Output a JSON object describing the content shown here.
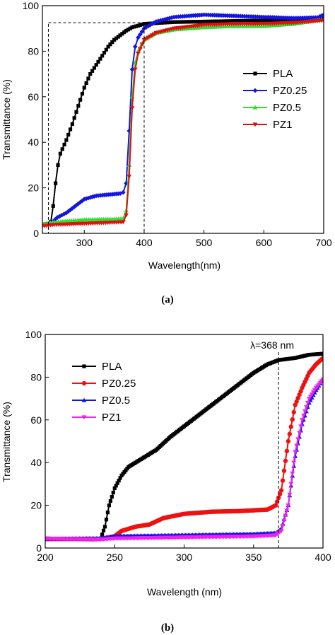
{
  "chart_data": [
    {
      "type": "line",
      "panel_label": "(a)",
      "xlabel": "Wavelength(nm)",
      "ylabel": "Transmittance (%)",
      "xlim": [
        230,
        700
      ],
      "ylim": [
        0,
        100
      ],
      "xticks": [
        300,
        400,
        500,
        600,
        700
      ],
      "yticks": [
        0,
        20,
        40,
        60,
        80,
        100
      ],
      "legend_position": "center-right",
      "grid": false,
      "highlight_box": {
        "x": [
          240,
          400
        ],
        "y": [
          0,
          92.5
        ]
      },
      "series": [
        {
          "name": "PLA",
          "color": "#000000",
          "marker": "square",
          "points": [
            [
              230,
              3.8
            ],
            [
              240,
              4.2
            ],
            [
              244,
              5
            ],
            [
              248,
              12
            ],
            [
              252,
              22
            ],
            [
              256,
              30
            ],
            [
              260,
              35
            ],
            [
              270,
              41
            ],
            [
              280,
              48
            ],
            [
              290,
              56
            ],
            [
              300,
              64
            ],
            [
              310,
              70
            ],
            [
              320,
              74
            ],
            [
              330,
              78
            ],
            [
              340,
              82
            ],
            [
              350,
              85
            ],
            [
              360,
              87
            ],
            [
              370,
              89
            ],
            [
              380,
              90.5
            ],
            [
              390,
              91.2
            ],
            [
              400,
              92
            ],
            [
              450,
              92.8
            ],
            [
              500,
              93
            ],
            [
              600,
              93.5
            ],
            [
              700,
              94.5
            ]
          ]
        },
        {
          "name": "PZ0.25",
          "color": "#1515e0",
          "marker": "diamond",
          "points": [
            [
              230,
              3.8
            ],
            [
              245,
              4.5
            ],
            [
              255,
              7
            ],
            [
              270,
              9
            ],
            [
              280,
              11
            ],
            [
              300,
              15
            ],
            [
              320,
              16.5
            ],
            [
              340,
              17
            ],
            [
              360,
              17.5
            ],
            [
              365,
              18
            ],
            [
              370,
              22
            ],
            [
              375,
              45
            ],
            [
              380,
              72
            ],
            [
              385,
              82
            ],
            [
              390,
              86
            ],
            [
              400,
              90
            ],
            [
              420,
              93
            ],
            [
              450,
              95
            ],
            [
              500,
              96
            ],
            [
              550,
              95.5
            ],
            [
              600,
              95
            ],
            [
              650,
              94.5
            ],
            [
              690,
              94.8
            ],
            [
              700,
              96
            ]
          ]
        },
        {
          "name": "PZ0.5",
          "color": "#33dd33",
          "marker": "triangle",
          "points": [
            [
              230,
              4
            ],
            [
              250,
              5
            ],
            [
              300,
              6
            ],
            [
              350,
              6.3
            ],
            [
              365,
              6.5
            ],
            [
              370,
              10
            ],
            [
              375,
              30
            ],
            [
              380,
              60
            ],
            [
              385,
              75
            ],
            [
              390,
              80
            ],
            [
              400,
              85
            ],
            [
              420,
              88
            ],
            [
              450,
              89.5
            ],
            [
              500,
              90.5
            ],
            [
              550,
              91
            ],
            [
              600,
              91
            ],
            [
              650,
              92
            ],
            [
              700,
              94
            ]
          ]
        },
        {
          "name": "PZ1",
          "color": "#dd1111",
          "marker": "triangle-down",
          "points": [
            [
              230,
              3.2
            ],
            [
              250,
              3.8
            ],
            [
              300,
              4.3
            ],
            [
              350,
              4.8
            ],
            [
              365,
              5
            ],
            [
              370,
              8
            ],
            [
              375,
              25
            ],
            [
              380,
              55
            ],
            [
              385,
              72
            ],
            [
              390,
              79
            ],
            [
              400,
              85
            ],
            [
              420,
              88
            ],
            [
              450,
              90
            ],
            [
              500,
              91.5
            ],
            [
              550,
              92
            ],
            [
              600,
              92
            ],
            [
              650,
              92.5
            ],
            [
              700,
              93.5
            ]
          ]
        }
      ]
    },
    {
      "type": "line",
      "panel_label": "(b)",
      "xlabel": "Wavelength (nm)",
      "ylabel": "Transmittance (%)",
      "xlim": [
        200,
        400
      ],
      "ylim": [
        0,
        100
      ],
      "xticks": [
        200,
        250,
        300,
        350,
        400
      ],
      "yticks": [
        0,
        20,
        40,
        60,
        80,
        100
      ],
      "legend_position": "top-left",
      "grid": false,
      "annotation": {
        "text": "λ=368 nm",
        "x": 368
      },
      "series": [
        {
          "name": "PLA",
          "color": "#000000",
          "marker": "square",
          "points": [
            [
              200,
              4.5
            ],
            [
              220,
              4.2
            ],
            [
              235,
              4
            ],
            [
              240,
              4.5
            ],
            [
              243,
              10
            ],
            [
              246,
              20
            ],
            [
              250,
              28
            ],
            [
              255,
              34
            ],
            [
              260,
              38
            ],
            [
              270,
              42
            ],
            [
              280,
              46
            ],
            [
              290,
              52
            ],
            [
              300,
              57
            ],
            [
              310,
              62
            ],
            [
              320,
              67
            ],
            [
              330,
              72
            ],
            [
              340,
              77
            ],
            [
              350,
              82
            ],
            [
              360,
              86
            ],
            [
              368,
              88
            ],
            [
              380,
              89
            ],
            [
              390,
              90.5
            ],
            [
              400,
              91
            ]
          ]
        },
        {
          "name": "PZ0.25",
          "color": "#ee1111",
          "marker": "circle",
          "points": [
            [
              200,
              4.2
            ],
            [
              240,
              4.3
            ],
            [
              250,
              5.5
            ],
            [
              255,
              8
            ],
            [
              265,
              10
            ],
            [
              275,
              11
            ],
            [
              285,
              14
            ],
            [
              300,
              16
            ],
            [
              320,
              17
            ],
            [
              340,
              17.3
            ],
            [
              360,
              18
            ],
            [
              366,
              20
            ],
            [
              370,
              27
            ],
            [
              375,
              50
            ],
            [
              380,
              67
            ],
            [
              385,
              75
            ],
            [
              390,
              82
            ],
            [
              395,
              86
            ],
            [
              400,
              89
            ]
          ]
        },
        {
          "name": "PZ0.5",
          "color": "#1515e0",
          "marker": "triangle",
          "points": [
            [
              200,
              4.3
            ],
            [
              240,
              4.5
            ],
            [
              250,
              5.5
            ],
            [
              300,
              6
            ],
            [
              350,
              6.5
            ],
            [
              366,
              7
            ],
            [
              370,
              9
            ],
            [
              375,
              20
            ],
            [
              380,
              43
            ],
            [
              385,
              58
            ],
            [
              390,
              68
            ],
            [
              395,
              74
            ],
            [
              400,
              79
            ]
          ]
        },
        {
          "name": "PZ1",
          "color": "#ee22ee",
          "marker": "triangle-down",
          "points": [
            [
              200,
              4.5
            ],
            [
              220,
              4.2
            ],
            [
              240,
              4
            ],
            [
              250,
              4.5
            ],
            [
              300,
              5
            ],
            [
              350,
              5.5
            ],
            [
              366,
              6
            ],
            [
              370,
              8
            ],
            [
              375,
              20
            ],
            [
              380,
              45
            ],
            [
              385,
              60
            ],
            [
              390,
              70
            ],
            [
              395,
              75
            ],
            [
              400,
              79
            ]
          ]
        }
      ]
    }
  ]
}
